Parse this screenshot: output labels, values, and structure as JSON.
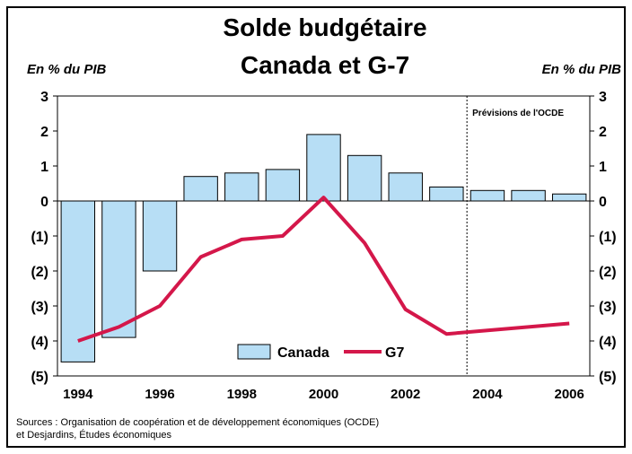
{
  "chart_data": {
    "type": "bar",
    "title": "Solde budgétaire",
    "subtitle": "Canada et G-7",
    "y_label": "En % du PIB",
    "y2_label": "En % du PIB",
    "annotation": "Prévisions de l'OCDE",
    "source": [
      "Sources : Organisation de coopération et de développement économiques (OCDE)",
      "et Desjardins, Études économiques"
    ],
    "categories": [
      "1994",
      null,
      "1996",
      null,
      "1998",
      null,
      "2000",
      null,
      "2002",
      null,
      "2004",
      null,
      "2006"
    ],
    "series": [
      {
        "name": "Canada",
        "type": "bar",
        "color": "#b7def5",
        "values": [
          -4.6,
          -3.9,
          -2.0,
          0.7,
          0.8,
          0.9,
          1.9,
          1.3,
          0.8,
          0.4,
          0.3,
          0.3,
          0.2
        ]
      },
      {
        "name": "G7",
        "type": "line",
        "color": "#d4174a",
        "values": [
          -4.0,
          -3.6,
          -3.0,
          -1.6,
          -1.1,
          -1.0,
          0.1,
          -1.2,
          -3.1,
          -3.8,
          -3.7,
          -3.6,
          -3.5
        ]
      }
    ],
    "ylim": [
      -5,
      3
    ],
    "yticks": [
      3,
      2,
      1,
      0,
      {
        "value": -1,
        "label": "(1)"
      },
      {
        "value": -2,
        "label": "(2)"
      },
      {
        "value": -3,
        "label": "(3)"
      },
      {
        "value": -4,
        "label": "(4)"
      },
      {
        "value": -5,
        "label": "(5)"
      }
    ],
    "legend": "bottom"
  }
}
